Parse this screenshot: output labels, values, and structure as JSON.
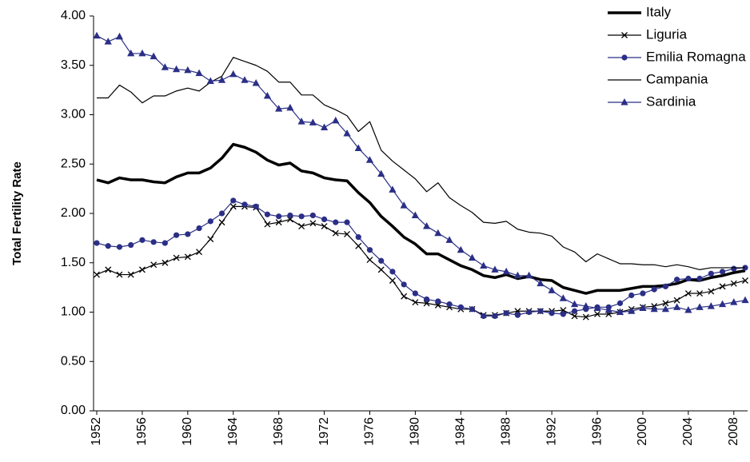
{
  "chart_data": {
    "type": "line",
    "y_label": "Total Fertility Rate",
    "x": [
      1952,
      1953,
      1954,
      1955,
      1956,
      1957,
      1958,
      1959,
      1960,
      1961,
      1962,
      1963,
      1964,
      1965,
      1966,
      1967,
      1968,
      1969,
      1970,
      1971,
      1972,
      1973,
      1974,
      1975,
      1976,
      1977,
      1978,
      1979,
      1980,
      1981,
      1982,
      1983,
      1984,
      1985,
      1986,
      1987,
      1988,
      1989,
      1990,
      1991,
      1992,
      1993,
      1994,
      1995,
      1996,
      1997,
      1998,
      1999,
      2000,
      2001,
      2002,
      2003,
      2004,
      2005,
      2006,
      2007,
      2008,
      2009
    ],
    "xlim": [
      1952,
      2009
    ],
    "xticks": [
      1952,
      1956,
      1960,
      1964,
      1968,
      1972,
      1976,
      1980,
      1984,
      1988,
      1992,
      1996,
      2000,
      2004,
      2008
    ],
    "ylim": [
      0,
      4
    ],
    "yticks": [
      {
        "value": 0,
        "label": "0.00"
      },
      {
        "value": 0.5,
        "label": "0.50"
      },
      {
        "value": 1,
        "label": "1.00"
      },
      {
        "value": 1.5,
        "label": "1.50"
      },
      {
        "value": 2,
        "label": "2.00"
      },
      {
        "value": 2.5,
        "label": "2.50"
      },
      {
        "value": 3,
        "label": "3.00"
      },
      {
        "value": 3.5,
        "label": "3.50"
      },
      {
        "value": 4,
        "label": "4.00"
      }
    ],
    "grid": false,
    "legend": "top-right",
    "series": [
      {
        "name": "Italy",
        "color": "#000000",
        "width": 3.5,
        "marker": "none",
        "values": [
          2.34,
          2.31,
          2.36,
          2.34,
          2.34,
          2.32,
          2.31,
          2.37,
          2.41,
          2.41,
          2.46,
          2.56,
          2.7,
          2.67,
          2.62,
          2.54,
          2.49,
          2.51,
          2.43,
          2.41,
          2.36,
          2.34,
          2.33,
          2.21,
          2.11,
          1.97,
          1.87,
          1.76,
          1.69,
          1.59,
          1.59,
          1.53,
          1.47,
          1.43,
          1.37,
          1.35,
          1.38,
          1.34,
          1.36,
          1.33,
          1.32,
          1.25,
          1.22,
          1.19,
          1.22,
          1.22,
          1.22,
          1.24,
          1.26,
          1.26,
          1.27,
          1.29,
          1.33,
          1.32,
          1.35,
          1.37,
          1.4,
          1.42
        ]
      },
      {
        "name": "Liguria",
        "color": "#000000",
        "width": 1.2,
        "marker": "x",
        "values": [
          1.38,
          1.43,
          1.38,
          1.38,
          1.43,
          1.48,
          1.5,
          1.55,
          1.56,
          1.61,
          1.74,
          1.91,
          2.07,
          2.07,
          2.06,
          1.89,
          1.91,
          1.94,
          1.87,
          1.9,
          1.87,
          1.8,
          1.79,
          1.67,
          1.53,
          1.43,
          1.32,
          1.16,
          1.1,
          1.09,
          1.07,
          1.05,
          1.03,
          1.03,
          0.97,
          0.97,
          0.99,
          1.01,
          1.01,
          1.01,
          1.01,
          1.02,
          0.96,
          0.95,
          0.98,
          0.98,
          1.0,
          1.03,
          1.05,
          1.06,
          1.09,
          1.12,
          1.19,
          1.19,
          1.21,
          1.26,
          1.29,
          1.32
        ]
      },
      {
        "name": "Emilia Romagna",
        "color": "#2b2f86",
        "width": 1.2,
        "marker": "circle",
        "values": [
          1.7,
          1.67,
          1.66,
          1.68,
          1.73,
          1.71,
          1.7,
          1.78,
          1.79,
          1.85,
          1.92,
          2.0,
          2.13,
          2.09,
          2.07,
          1.99,
          1.97,
          1.98,
          1.97,
          1.98,
          1.94,
          1.91,
          1.91,
          1.76,
          1.63,
          1.52,
          1.41,
          1.28,
          1.19,
          1.13,
          1.11,
          1.08,
          1.05,
          1.03,
          0.96,
          0.96,
          0.99,
          0.97,
          1.0,
          1.01,
          0.99,
          0.98,
          1.01,
          1.03,
          1.05,
          1.05,
          1.09,
          1.17,
          1.19,
          1.23,
          1.26,
          1.33,
          1.34,
          1.34,
          1.39,
          1.41,
          1.44,
          1.45
        ]
      },
      {
        "name": "Campania",
        "color": "#000000",
        "width": 1.2,
        "marker": "none",
        "values": [
          3.17,
          3.17,
          3.3,
          3.23,
          3.12,
          3.19,
          3.19,
          3.24,
          3.27,
          3.24,
          3.33,
          3.39,
          3.58,
          3.54,
          3.5,
          3.44,
          3.33,
          3.33,
          3.2,
          3.2,
          3.1,
          3.05,
          2.99,
          2.83,
          2.93,
          2.64,
          2.53,
          2.44,
          2.35,
          2.22,
          2.31,
          2.16,
          2.08,
          2.01,
          1.91,
          1.9,
          1.92,
          1.84,
          1.81,
          1.8,
          1.77,
          1.66,
          1.61,
          1.51,
          1.59,
          1.54,
          1.49,
          1.49,
          1.48,
          1.48,
          1.46,
          1.48,
          1.46,
          1.43,
          1.45,
          1.45,
          1.45,
          1.45
        ]
      },
      {
        "name": "Sardinia",
        "color": "#2b2f86",
        "width": 1.2,
        "marker": "triangle",
        "values": [
          3.8,
          3.74,
          3.79,
          3.62,
          3.62,
          3.59,
          3.48,
          3.46,
          3.45,
          3.42,
          3.34,
          3.35,
          3.41,
          3.35,
          3.32,
          3.19,
          3.06,
          3.07,
          2.93,
          2.92,
          2.87,
          2.94,
          2.81,
          2.66,
          2.54,
          2.4,
          2.24,
          2.08,
          1.98,
          1.87,
          1.8,
          1.73,
          1.63,
          1.55,
          1.47,
          1.43,
          1.41,
          1.37,
          1.37,
          1.29,
          1.22,
          1.14,
          1.08,
          1.06,
          1.04,
          1.02,
          1.0,
          1.01,
          1.04,
          1.03,
          1.03,
          1.05,
          1.02,
          1.05,
          1.06,
          1.08,
          1.1,
          1.12
        ]
      }
    ]
  }
}
